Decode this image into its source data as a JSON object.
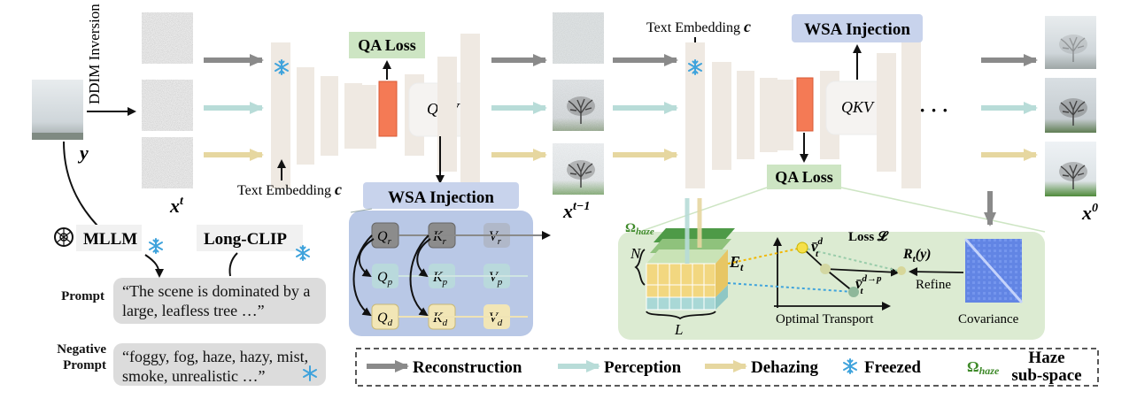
{
  "labels": {
    "ddim_inversion": "DDIM Inversion",
    "y": "y",
    "x_t": "x",
    "x_t_sup": "t",
    "x_t1": "x",
    "x_t1_sup": "t−1",
    "x_0": "x",
    "x_0_sup": "0",
    "qa_loss_1": "QA Loss",
    "qa_loss_2": "QA Loss",
    "wsa_injection_1": "WSA Injection",
    "wsa_injection_2": "WSA Injection",
    "qkv_1": "QKV",
    "qkv_2": "QKV",
    "text_embedding_left": "Text   Embedding",
    "text_embedding_top": "Text Embedding",
    "c": "c",
    "mllm": "MLLM",
    "long_clip": "Long-CLIP",
    "dots": "· · ·",
    "omega_haze": "Ω",
    "omega_sub": "haze",
    "e_t": "E",
    "e_t_sub": "t",
    "n": "N",
    "l": "L",
    "v_d": "v̄",
    "v_d_sup": "d",
    "v_d_sub": "t",
    "v_dp": "v̄",
    "v_dp_sup": "d→p",
    "v_dp_sub": "t",
    "loss": "Loss 𝓛",
    "r_t": "R",
    "r_t_sub": "t",
    "r_t_arg": "(y)",
    "refine": "Refine",
    "optimal_transport": "Optimal Transport",
    "covariance": "Covariance"
  },
  "qkv_grid": {
    "q": [
      "Q",
      "Q",
      "Q"
    ],
    "k": [
      "K",
      "K",
      "K"
    ],
    "v": [
      "V",
      "V",
      "V"
    ],
    "subs": [
      "r",
      "p",
      "d"
    ]
  },
  "prompt": {
    "label": "Prompt",
    "text": "“The scene is dominated by a large, leafless tree …”"
  },
  "negative_prompt": {
    "label": "Negative Prompt",
    "text": "“foggy, fog, haze, hazy, mist, smoke, unrealistic …”"
  },
  "legend": {
    "reconstruction": "Reconstruction",
    "perception": "Perception",
    "dehazing": "Dehazing",
    "freezed": "Freezed",
    "haze_omega": "Ω",
    "haze_omega_sub": "haze",
    "haze_line1": "Haze",
    "haze_line2": "sub-space"
  },
  "colors": {
    "reconstruction": "#8a8a8a",
    "perception": "#b8dcd8",
    "dehazing": "#e6d7a0",
    "wsa_fill": "#c8d3ec",
    "wsa_panel": "#b9c8e6",
    "qa_fill": "#cde5c3",
    "ot_panel": "#dcebd2",
    "unet_block": "#efe9e2",
    "orange": "#f47a55",
    "snowflake": "#3fa3dc",
    "green_text": "#3f8a2a"
  }
}
